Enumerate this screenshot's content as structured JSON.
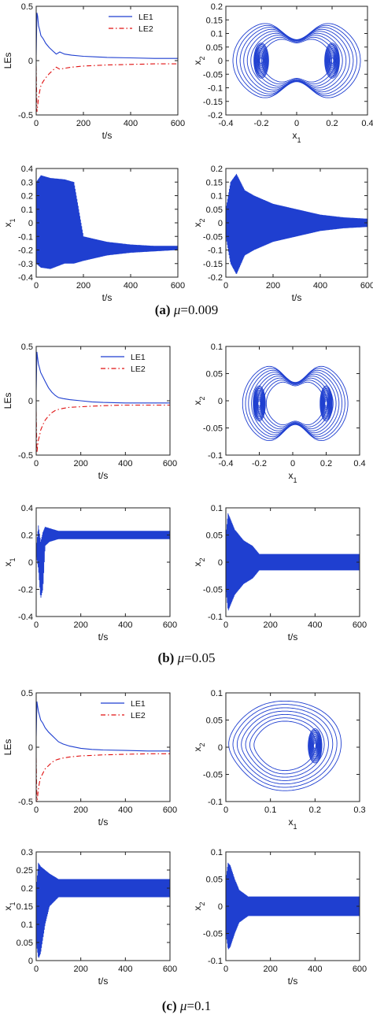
{
  "captions": [
    {
      "letter": "(a)",
      "param": "μ",
      "value": "=0.009"
    },
    {
      "letter": "(b)",
      "param": "μ",
      "value": "=0.05"
    },
    {
      "letter": "(c)",
      "param": "μ",
      "value": "=0.1"
    }
  ],
  "chart_data": [
    {
      "id": "a-les",
      "type": "line",
      "panel": "a",
      "grid": false,
      "xlabel": "t/s",
      "ylabel": "LEs",
      "xlim": [
        0,
        600
      ],
      "ylim": [
        -0.5,
        0.5
      ],
      "xticks": [
        "0",
        "200",
        "400",
        "600"
      ],
      "yticks": [
        "-0.5",
        "0",
        "0.5"
      ],
      "legend_position": "top-right",
      "series": [
        {
          "name": "LE1",
          "color": "#1f3fd0",
          "style": "solid",
          "x": [
            0,
            3,
            6,
            10,
            15,
            20,
            30,
            40,
            55,
            70,
            85,
            100,
            120,
            150,
            200,
            250,
            300,
            400,
            500,
            600
          ],
          "y": [
            0.05,
            0.44,
            0.41,
            0.32,
            0.28,
            0.23,
            0.2,
            0.16,
            0.12,
            0.09,
            0.06,
            0.08,
            0.06,
            0.05,
            0.04,
            0.035,
            0.03,
            0.025,
            0.02,
            0.02
          ]
        },
        {
          "name": "LE2",
          "color": "#e01010",
          "style": "dashdot",
          "x": [
            0,
            3,
            6,
            10,
            15,
            20,
            30,
            40,
            55,
            70,
            85,
            100,
            120,
            150,
            200,
            250,
            300,
            400,
            500,
            600
          ],
          "y": [
            -0.05,
            -0.47,
            -0.42,
            -0.34,
            -0.28,
            -0.23,
            -0.19,
            -0.16,
            -0.12,
            -0.09,
            -0.06,
            -0.08,
            -0.07,
            -0.06,
            -0.05,
            -0.045,
            -0.04,
            -0.035,
            -0.03,
            -0.03
          ]
        }
      ]
    },
    {
      "id": "a-phase",
      "type": "line",
      "panel": "a",
      "grid": false,
      "xlabel": "x1",
      "ylabel": "x2",
      "xlim": [
        -0.4,
        0.4
      ],
      "ylim": [
        -0.2,
        0.2
      ],
      "xticks": [
        "-0.4",
        "-0.2",
        "0",
        "0.2",
        "0.4"
      ],
      "yticks": [
        "-0.2",
        "-0.15",
        "-0.1",
        "-0.05",
        "0",
        "0.05",
        "0.1",
        "0.15",
        "0.2"
      ],
      "series": [
        {
          "color": "#1f3fd0",
          "type": "phase-portrait",
          "centers_x1": [
            -0.2,
            0.2
          ],
          "x1_range": [
            -0.36,
            0.36
          ],
          "x2_range": [
            -0.17,
            0.17
          ]
        }
      ]
    },
    {
      "id": "a-x1",
      "type": "line",
      "panel": "a",
      "grid": false,
      "xlabel": "t/s",
      "ylabel": "x1",
      "xlim": [
        0,
        600
      ],
      "ylim": [
        -0.4,
        0.4
      ],
      "xticks": [
        "0",
        "200",
        "400",
        "600"
      ],
      "yticks": [
        "-0.4",
        "-0.3",
        "-0.2",
        "-0.1",
        "0",
        "0.1",
        "0.2",
        "0.3",
        "0.4"
      ],
      "series": [
        {
          "color": "#1f3fd0",
          "type": "oscillation",
          "x": [
            0,
            20,
            60,
            120,
            160,
            200,
            300,
            400,
            500,
            600
          ],
          "upper": [
            0.3,
            0.35,
            0.33,
            0.32,
            0.3,
            -0.1,
            -0.14,
            -0.16,
            -0.17,
            -0.17
          ],
          "lower": [
            -0.3,
            -0.33,
            -0.34,
            -0.3,
            -0.3,
            -0.28,
            -0.24,
            -0.22,
            -0.21,
            -0.2
          ]
        }
      ]
    },
    {
      "id": "a-x2",
      "type": "line",
      "panel": "a",
      "grid": false,
      "xlabel": "t/s",
      "ylabel": "x2",
      "xlim": [
        0,
        600
      ],
      "ylim": [
        -0.2,
        0.2
      ],
      "xticks": [
        "0",
        "200",
        "400",
        "600"
      ],
      "yticks": [
        "-0.2",
        "-0.15",
        "-0.1",
        "-0.05",
        "0",
        "0.05",
        "0.1",
        "0.15",
        "0.2"
      ],
      "series": [
        {
          "color": "#1f3fd0",
          "type": "oscillation",
          "x": [
            0,
            20,
            45,
            80,
            120,
            200,
            300,
            400,
            500,
            600
          ],
          "upper": [
            0.05,
            0.15,
            0.18,
            0.12,
            0.1,
            0.07,
            0.05,
            0.03,
            0.02,
            0.015
          ],
          "lower": [
            -0.05,
            -0.15,
            -0.19,
            -0.12,
            -0.1,
            -0.07,
            -0.05,
            -0.03,
            -0.02,
            -0.015
          ]
        }
      ]
    },
    {
      "id": "b-les",
      "type": "line",
      "panel": "b",
      "grid": false,
      "xlabel": "t/s",
      "ylabel": "LEs",
      "xlim": [
        0,
        600
      ],
      "ylim": [
        -0.5,
        0.5
      ],
      "xticks": [
        "0",
        "200",
        "400",
        "600"
      ],
      "yticks": [
        "-0.5",
        "0",
        "0.5"
      ],
      "legend_position": "top-right",
      "series": [
        {
          "name": "LE1",
          "color": "#1f3fd0",
          "style": "solid",
          "x": [
            0,
            3,
            6,
            10,
            15,
            20,
            30,
            40,
            55,
            70,
            85,
            100,
            120,
            150,
            200,
            250,
            300,
            400,
            500,
            600
          ],
          "y": [
            0.1,
            0.45,
            0.4,
            0.34,
            0.3,
            0.26,
            0.22,
            0.18,
            0.12,
            0.08,
            0.05,
            0.03,
            0.02,
            0.01,
            0.0,
            -0.01,
            -0.015,
            -0.02,
            -0.02,
            -0.02
          ]
        },
        {
          "name": "LE2",
          "color": "#e01010",
          "style": "dashdot",
          "x": [
            0,
            3,
            6,
            10,
            15,
            20,
            30,
            40,
            55,
            70,
            85,
            100,
            120,
            150,
            200,
            250,
            300,
            400,
            500,
            600
          ],
          "y": [
            -0.1,
            -0.48,
            -0.42,
            -0.36,
            -0.32,
            -0.27,
            -0.22,
            -0.18,
            -0.14,
            -0.11,
            -0.09,
            -0.08,
            -0.07,
            -0.06,
            -0.055,
            -0.05,
            -0.045,
            -0.04,
            -0.04,
            -0.04
          ]
        }
      ]
    },
    {
      "id": "b-phase",
      "type": "line",
      "panel": "b",
      "grid": false,
      "xlabel": "x1",
      "ylabel": "x2",
      "xlim": [
        -0.4,
        0.4
      ],
      "ylim": [
        -0.1,
        0.1
      ],
      "xticks": [
        "-0.4",
        "-0.2",
        "0",
        "0.2",
        "0.4"
      ],
      "yticks": [
        "-0.1",
        "-0.05",
        "0",
        "0.05",
        "0.1"
      ],
      "series": [
        {
          "color": "#1f3fd0",
          "type": "phase-portrait",
          "centers_x1": [
            -0.2,
            0.2
          ],
          "x1_range": [
            -0.3,
            0.33
          ],
          "x2_range": [
            -0.09,
            0.08
          ]
        }
      ]
    },
    {
      "id": "b-x1",
      "type": "line",
      "panel": "b",
      "grid": false,
      "xlabel": "t/s",
      "ylabel": "x1",
      "xlim": [
        0,
        600
      ],
      "ylim": [
        -0.4,
        0.4
      ],
      "xticks": [
        "0",
        "200",
        "400",
        "600"
      ],
      "yticks": [
        "-0.4",
        "-0.2",
        "0",
        "0.2",
        "0.4"
      ],
      "series": [
        {
          "color": "#1f3fd0",
          "type": "oscillation",
          "x": [
            0,
            10,
            20,
            30,
            40,
            60,
            100,
            600
          ],
          "upper": [
            0.1,
            0.27,
            0.15,
            0.22,
            0.26,
            0.25,
            0.23,
            0.23
          ],
          "lower": [
            0.05,
            -0.05,
            -0.27,
            -0.2,
            0.12,
            0.15,
            0.17,
            0.17
          ]
        }
      ]
    },
    {
      "id": "b-x2",
      "type": "line",
      "panel": "b",
      "grid": false,
      "xlabel": "t/s",
      "ylabel": "x2",
      "xlim": [
        0,
        600
      ],
      "ylim": [
        -0.1,
        0.1
      ],
      "xticks": [
        "0",
        "200",
        "400",
        "600"
      ],
      "yticks": [
        "-0.1",
        "-0.05",
        "0",
        "0.05",
        "0.1"
      ],
      "series": [
        {
          "color": "#1f3fd0",
          "type": "oscillation",
          "x": [
            0,
            10,
            20,
            40,
            80,
            120,
            150,
            600
          ],
          "upper": [
            0.05,
            0.09,
            0.08,
            0.06,
            0.04,
            0.03,
            0.015,
            0.015
          ],
          "lower": [
            -0.05,
            -0.09,
            -0.08,
            -0.06,
            -0.04,
            -0.03,
            -0.015,
            -0.015
          ]
        }
      ]
    },
    {
      "id": "c-les",
      "type": "line",
      "panel": "c",
      "grid": false,
      "xlabel": "t/s",
      "ylabel": "LEs",
      "xlim": [
        0,
        600
      ],
      "ylim": [
        -0.5,
        0.5
      ],
      "xticks": [
        "0",
        "200",
        "400",
        "600"
      ],
      "yticks": [
        "-0.5",
        "0",
        "0.5"
      ],
      "legend_position": "top-right",
      "series": [
        {
          "name": "LE1",
          "color": "#1f3fd0",
          "style": "solid",
          "x": [
            0,
            3,
            6,
            10,
            15,
            20,
            30,
            40,
            55,
            70,
            85,
            100,
            120,
            150,
            200,
            250,
            300,
            400,
            500,
            600
          ],
          "y": [
            0.1,
            0.42,
            0.38,
            0.33,
            0.29,
            0.25,
            0.22,
            0.18,
            0.14,
            0.11,
            0.08,
            0.05,
            0.03,
            0.01,
            -0.01,
            -0.02,
            -0.025,
            -0.03,
            -0.035,
            -0.035
          ]
        },
        {
          "name": "LE2",
          "color": "#e01010",
          "style": "dashdot",
          "x": [
            0,
            3,
            6,
            10,
            15,
            20,
            30,
            40,
            55,
            70,
            85,
            100,
            120,
            150,
            200,
            250,
            300,
            400,
            500,
            600
          ],
          "y": [
            -0.1,
            -0.52,
            -0.46,
            -0.38,
            -0.32,
            -0.28,
            -0.24,
            -0.2,
            -0.17,
            -0.14,
            -0.12,
            -0.11,
            -0.1,
            -0.09,
            -0.08,
            -0.075,
            -0.07,
            -0.065,
            -0.06,
            -0.06
          ]
        }
      ]
    },
    {
      "id": "c-phase",
      "type": "line",
      "panel": "c",
      "grid": false,
      "xlabel": "x1",
      "ylabel": "x2",
      "xlim": [
        0,
        0.3
      ],
      "ylim": [
        -0.1,
        0.1
      ],
      "xticks": [
        "0",
        "0.1",
        "0.2",
        "0.3"
      ],
      "yticks": [
        "-0.1",
        "-0.05",
        "0",
        "0.05",
        "0.1"
      ],
      "series": [
        {
          "color": "#1f3fd0",
          "type": "phase-portrait",
          "centers_x1": [
            0.2
          ],
          "x1_range": [
            0.0,
            0.265
          ],
          "x2_range": [
            -0.08,
            0.085
          ]
        }
      ]
    },
    {
      "id": "c-x1",
      "type": "line",
      "panel": "c",
      "grid": false,
      "xlabel": "t/s",
      "ylabel": "x1",
      "xlim": [
        0,
        600
      ],
      "ylim": [
        0,
        0.3
      ],
      "xticks": [
        "0",
        "200",
        "400",
        "600"
      ],
      "yticks": [
        "0",
        "0.05",
        "0.1",
        "0.15",
        "0.2",
        "0.25",
        "0.3"
      ],
      "series": [
        {
          "color": "#1f3fd0",
          "type": "oscillation",
          "x": [
            0,
            10,
            20,
            40,
            60,
            100,
            600
          ],
          "upper": [
            0.2,
            0.27,
            0.26,
            0.25,
            0.24,
            0.225,
            0.225
          ],
          "lower": [
            0.05,
            0.005,
            0.02,
            0.1,
            0.15,
            0.175,
            0.175
          ]
        }
      ]
    },
    {
      "id": "c-x2",
      "type": "line",
      "panel": "c",
      "grid": false,
      "xlabel": "t/s",
      "ylabel": "x2",
      "xlim": [
        0,
        600
      ],
      "ylim": [
        -0.1,
        0.1
      ],
      "xticks": [
        "0",
        "200",
        "400",
        "600"
      ],
      "yticks": [
        "-0.1",
        "-0.05",
        "0",
        "0.05",
        "0.1"
      ],
      "series": [
        {
          "color": "#1f3fd0",
          "type": "oscillation",
          "x": [
            0,
            10,
            20,
            40,
            60,
            100,
            600
          ],
          "upper": [
            0.05,
            0.08,
            0.075,
            0.05,
            0.03,
            0.018,
            0.018
          ],
          "lower": [
            -0.05,
            -0.08,
            -0.075,
            -0.05,
            -0.03,
            -0.018,
            -0.018
          ]
        }
      ]
    }
  ]
}
